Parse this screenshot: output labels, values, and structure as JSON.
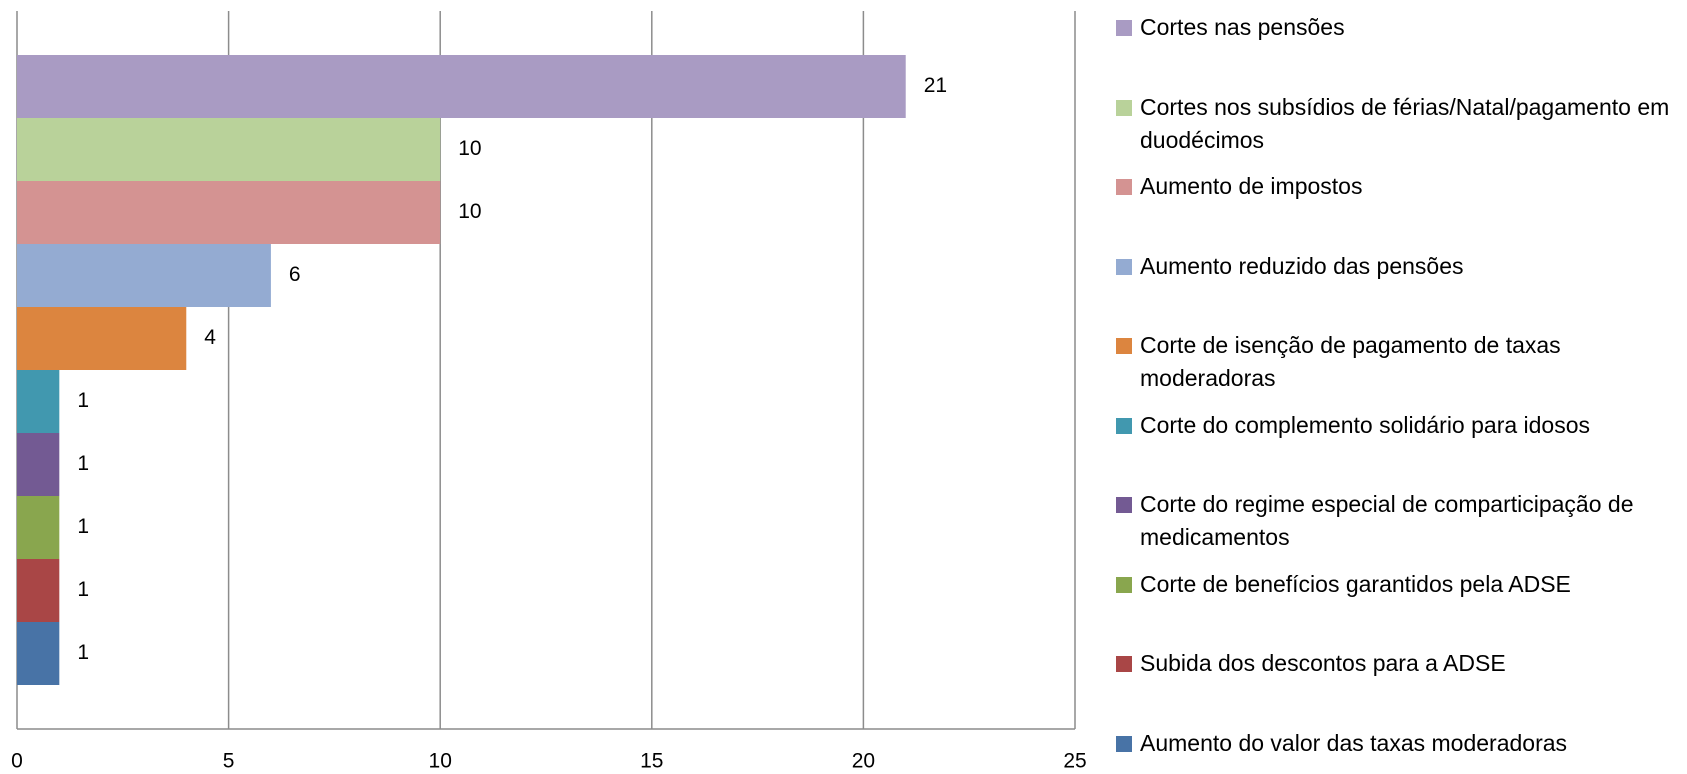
{
  "chart_data": {
    "type": "bar",
    "orientation": "horizontal",
    "series": [
      {
        "name": "Cortes nas pensões",
        "color": "#a99bc3",
        "values": [
          21
        ]
      },
      {
        "name": "Cortes nos subsídios de férias/Natal/pagamento em duodécimos",
        "color": "#b9d29a",
        "values": [
          10
        ]
      },
      {
        "name": "Aumento de impostos",
        "color": "#d49392",
        "values": [
          10
        ]
      },
      {
        "name": "Aumento reduzido das pensões",
        "color": "#94abd2",
        "values": [
          6
        ]
      },
      {
        "name": "Corte de isenção de pagamento de taxas moderadoras",
        "color": "#dc853f",
        "values": [
          4
        ]
      },
      {
        "name": "Corte do complemento solidário para idosos",
        "color": "#4198af",
        "values": [
          1
        ]
      },
      {
        "name": "Corte do regime especial de comparticipação de medicamentos",
        "color": "#735a93",
        "values": [
          1
        ]
      },
      {
        "name": "Corte de benefícios garantidos pela ADSE",
        "color": "#89a64e",
        "values": [
          1
        ]
      },
      {
        "name": "Subida dos descontos para a ADSE",
        "color": "#a94646",
        "values": [
          1
        ]
      },
      {
        "name": "Aumento do valor das taxas moderadoras",
        "color": "#4873a6",
        "values": [
          1
        ]
      }
    ],
    "xlim": [
      0,
      25
    ],
    "xticks": [
      0,
      5,
      10,
      15,
      20,
      25
    ],
    "grid": true,
    "legend": "right"
  }
}
